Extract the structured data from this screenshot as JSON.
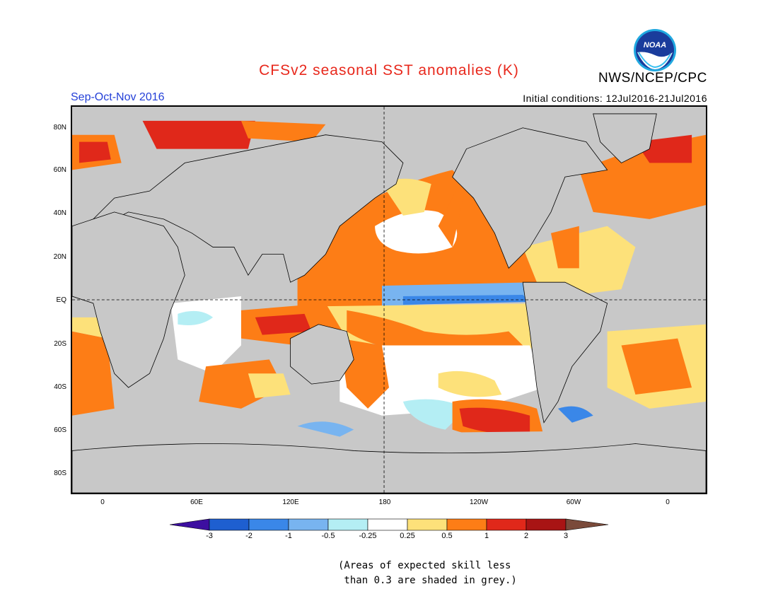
{
  "title": "CFSv2 seasonal SST anomalies (K)",
  "agency": "NWS/NCEP/CPC",
  "logo_text": "NOAA",
  "season": "Sep-Oct-Nov 2016",
  "initial_conditions": "Initial conditions: 12Jul2016-21Jul2016",
  "lat_labels": [
    "80N",
    "60N",
    "40N",
    "20N",
    "EQ",
    "20S",
    "40S",
    "60S",
    "80S"
  ],
  "lon_labels": [
    "0",
    "60E",
    "120E",
    "180",
    "120W",
    "60W",
    "0"
  ],
  "colorbar": {
    "ticks": [
      "-3",
      "-2",
      "-1",
      "-0.5",
      "-0.25",
      "0.25",
      "0.5",
      "1",
      "2",
      "3"
    ],
    "colors": [
      "#3d0fa0",
      "#1e5fd0",
      "#3a87e8",
      "#78b4f0",
      "#b4eef4",
      "#ffffff",
      "#fde17a",
      "#fd7d16",
      "#e0281a",
      "#a81414",
      "#7a4a3a"
    ]
  },
  "note_line1": "(Areas of expected skill less",
  "note_line2": " than 0.3 are shaded in grey.)",
  "colors": {
    "title": "#e8281c",
    "season": "#2440d8",
    "skill_grey": "#c8c8c8",
    "land": "#c8c8c8"
  }
}
